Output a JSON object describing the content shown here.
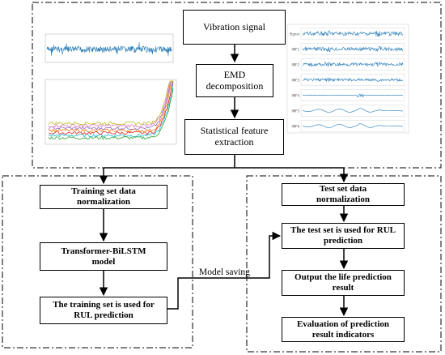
{
  "top": {
    "vibration_signal": "Vibration signal",
    "emd_decomposition": "EMD decomposition",
    "statistical_feature_extraction": "Statistical feature extraction"
  },
  "left": {
    "training_normalization": "Training set data normalization",
    "model": "Transformer-BiLSTM model",
    "training_rul": "The training set is used for RUL prediction"
  },
  "right": {
    "test_normalization": "Test set data normalization",
    "test_rul": "The test set is used for RUL prediction",
    "output_life": "Output the life prediction result",
    "evaluation": "Evaluation of prediction result indicators"
  },
  "connector": {
    "model_saving": "Model saving"
  },
  "imf_chart": {
    "row_labels": [
      "Signal",
      "IMF1",
      "IMF2",
      "IMF3",
      "IMF4",
      "IMF5",
      "IMF6"
    ]
  },
  "colors": {
    "signal_blue": "#1f77b4",
    "feature_series": [
      "#2ca02c",
      "#17becf",
      "#d62728",
      "#ff7f0e",
      "#9467bd",
      "#e377c2",
      "#bcbd22"
    ]
  }
}
